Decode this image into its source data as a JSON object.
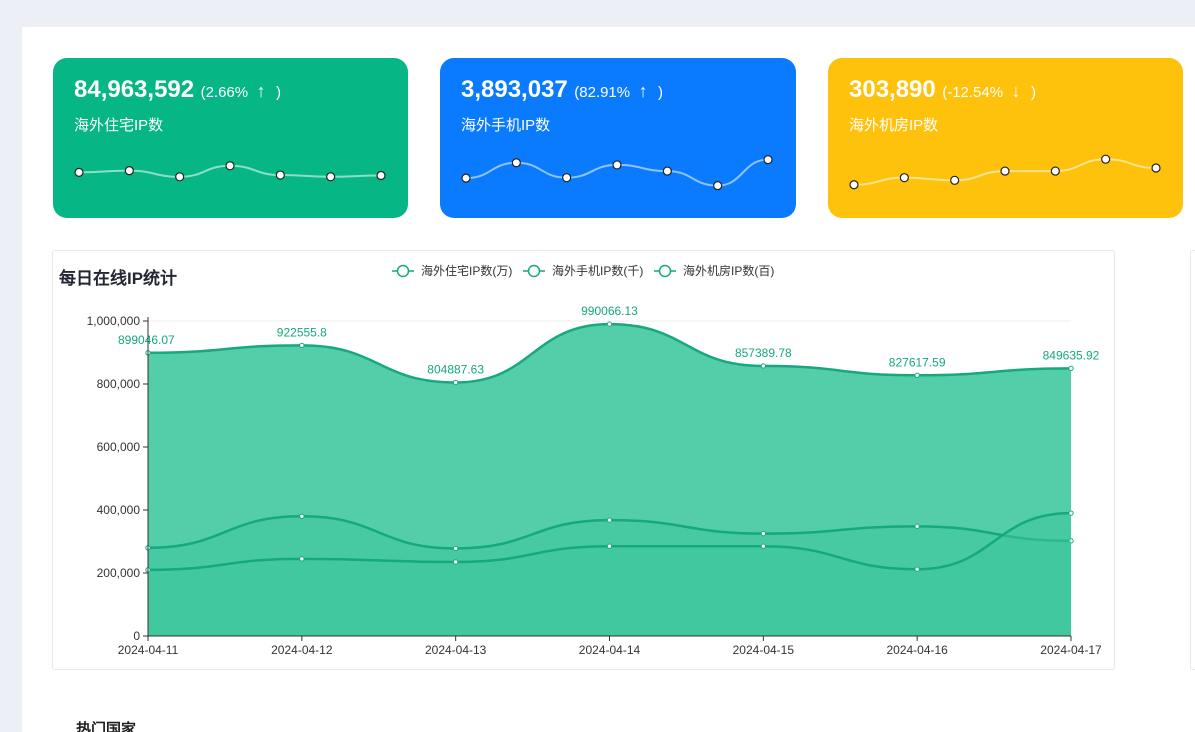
{
  "cards": {
    "residential": {
      "value": "84,963,592",
      "pct": "(2.66%",
      "arrow": "↑",
      "close": ")",
      "label": "海外住宅IP数",
      "trend": "up",
      "color": "#06b684",
      "spark": [
        0.4,
        0.44,
        0.3,
        0.55,
        0.34,
        0.3,
        0.33
      ]
    },
    "mobile": {
      "value": "3,893,037",
      "pct": "(82.91%",
      "arrow": "↑",
      "close": ")",
      "label": "海外手机IP数",
      "trend": "up",
      "color": "#0a7bff",
      "spark": [
        0.27,
        0.62,
        0.28,
        0.57,
        0.43,
        0.1,
        0.69
      ]
    },
    "datacenter": {
      "value": "303,890",
      "pct": "(-12.54%",
      "arrow": "↓",
      "close": ")",
      "label": "海外机房IP数",
      "trend": "down",
      "color": "#fec10c",
      "spark": [
        0.12,
        0.28,
        0.22,
        0.43,
        0.43,
        0.7,
        0.5
      ]
    }
  },
  "daily_chart": {
    "title": "每日在线IP统计",
    "section_next": "热门国家"
  },
  "chart_data": {
    "type": "area",
    "title": "每日在线IP统计",
    "x": [
      "2024-04-11",
      "2024-04-12",
      "2024-04-13",
      "2024-04-14",
      "2024-04-15",
      "2024-04-16",
      "2024-04-17"
    ],
    "ylim": [
      0,
      1000000
    ],
    "yticks": [
      0,
      200000,
      400000,
      600000,
      800000,
      1000000
    ],
    "ytick_labels": [
      "0",
      "200,000",
      "400,000",
      "600,000",
      "800,000",
      "1,000,000"
    ],
    "legend_position": "top-center",
    "series": [
      {
        "name": "海外住宅IP数(万)",
        "values": [
          899046.07,
          922555.8,
          804887.63,
          990066.13,
          857389.78,
          827617.59,
          849635.92
        ],
        "labels": [
          "899046.07",
          "922555.8",
          "804887.63",
          "990066.13",
          "857389.78",
          "827617.59",
          "849635.92"
        ]
      },
      {
        "name": "海外手机IP数(千)",
        "values": [
          280000,
          380000,
          278000,
          368000,
          325000,
          348000,
          302000
        ]
      },
      {
        "name": "海外机房IP数(百)",
        "values": [
          210000,
          245000,
          235000,
          285000,
          285000,
          212000,
          390000
        ]
      }
    ],
    "colors": {
      "line": "#16a87f",
      "area": "#3cc79d",
      "label": "#16a87f",
      "axis": "#333333",
      "grid": "#eeeeee"
    }
  }
}
